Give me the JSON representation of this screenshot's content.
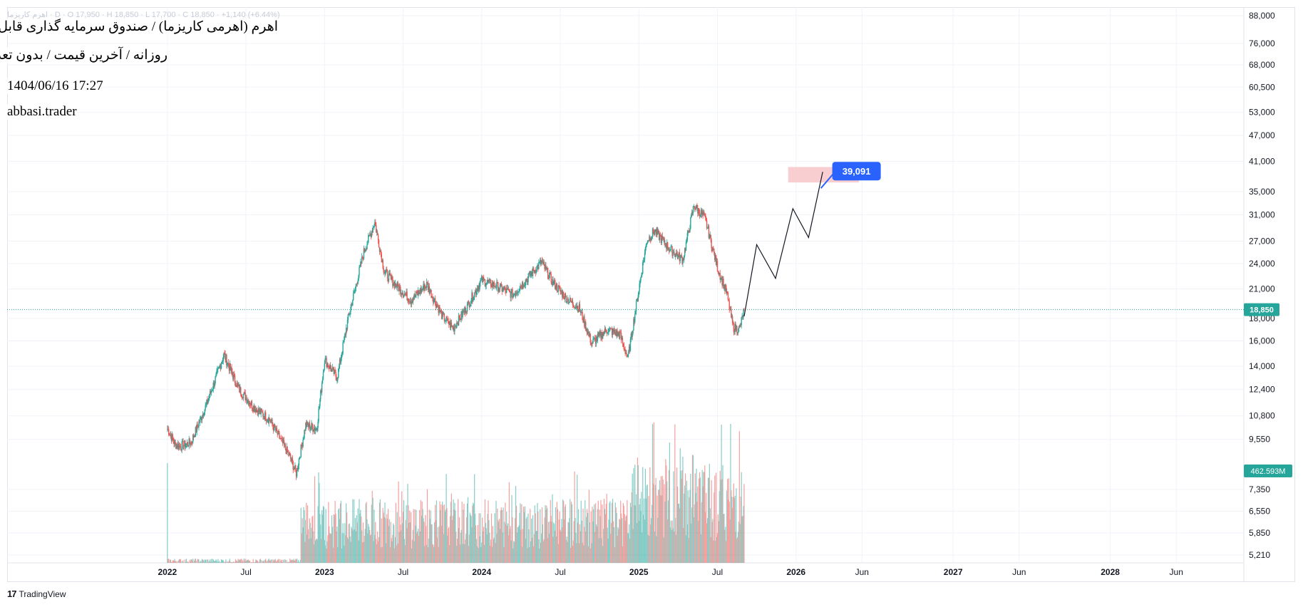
{
  "header": {
    "symbol_line": "اهرم کاریزما · D · O 17,950 · H 18,850 · L 17,700 · C 18,850 · +1,140 (+6.44%)",
    "title": "اهرم (اهرمی کاریزما) / صندوق سرمایه گذاری قابل معامله",
    "subtitle": "روزانه / آخرین قیمت / بدون تعدیل",
    "datetime": "1404/06/16 17:27",
    "author": "abbasi.trader"
  },
  "branding": {
    "logo_text": "TradingView",
    "logo_mark": "17"
  },
  "colors": {
    "up": "#26a69a",
    "down": "#ef5350",
    "grid": "#f0f3fa",
    "price_line": "#26a69a",
    "target_zone": "#f7c5c8",
    "callout": "#2962ff",
    "projection": "#131722"
  },
  "chart_data": {
    "type": "candlestick",
    "scale": "log",
    "ylim": [
      5000,
      92000
    ],
    "y_ticks": [
      88000,
      76000,
      68000,
      60500,
      53000,
      47000,
      41000,
      35000,
      31000,
      27000,
      24000,
      21000,
      18000,
      16000,
      14000,
      12400,
      10800,
      9550,
      7350,
      6550,
      5850,
      5210
    ],
    "x_ticks": [
      {
        "label": "2022",
        "t": 2022.0,
        "major": true
      },
      {
        "label": "Jul",
        "t": 2022.5,
        "major": false
      },
      {
        "label": "2023",
        "t": 2023.0,
        "major": true
      },
      {
        "label": "Jul",
        "t": 2023.5,
        "major": false
      },
      {
        "label": "2024",
        "t": 2024.0,
        "major": true
      },
      {
        "label": "Jul",
        "t": 2024.5,
        "major": false
      },
      {
        "label": "2025",
        "t": 2025.0,
        "major": true
      },
      {
        "label": "Jul",
        "t": 2025.5,
        "major": false
      },
      {
        "label": "2026",
        "t": 2026.0,
        "major": true
      },
      {
        "label": "Jun",
        "t": 2026.42,
        "major": false
      },
      {
        "label": "2027",
        "t": 2027.0,
        "major": true
      },
      {
        "label": "Jun",
        "t": 2027.42,
        "major": false
      },
      {
        "label": "2028",
        "t": 2028.0,
        "major": true
      },
      {
        "label": "Jun",
        "t": 2028.42,
        "major": false
      }
    ],
    "xlim": [
      2020.98,
      2028.85
    ],
    "price_path": [
      [
        2022.0,
        10100
      ],
      [
        2022.05,
        9300
      ],
      [
        2022.08,
        9200
      ],
      [
        2022.15,
        9400
      ],
      [
        2022.25,
        11500
      ],
      [
        2022.36,
        14900
      ],
      [
        2022.45,
        12500
      ],
      [
        2022.55,
        11300
      ],
      [
        2022.65,
        10600
      ],
      [
        2022.78,
        8700
      ],
      [
        2022.82,
        8000
      ],
      [
        2022.88,
        10300
      ],
      [
        2022.95,
        10100
      ],
      [
        2023.0,
        14500
      ],
      [
        2023.08,
        13200
      ],
      [
        2023.15,
        18000
      ],
      [
        2023.25,
        25500
      ],
      [
        2023.32,
        29800
      ],
      [
        2023.38,
        23000
      ],
      [
        2023.45,
        21500
      ],
      [
        2023.55,
        19800
      ],
      [
        2023.65,
        21500
      ],
      [
        2023.75,
        18200
      ],
      [
        2023.82,
        17100
      ],
      [
        2023.9,
        19000
      ],
      [
        2024.0,
        22000
      ],
      [
        2024.1,
        21300
      ],
      [
        2024.2,
        20400
      ],
      [
        2024.3,
        22400
      ],
      [
        2024.38,
        24200
      ],
      [
        2024.45,
        21800
      ],
      [
        2024.55,
        19800
      ],
      [
        2024.62,
        19000
      ],
      [
        2024.7,
        15800
      ],
      [
        2024.8,
        17000
      ],
      [
        2024.88,
        16500
      ],
      [
        2024.93,
        14600
      ],
      [
        2025.0,
        21000
      ],
      [
        2025.05,
        27000
      ],
      [
        2025.1,
        28500
      ],
      [
        2025.2,
        25800
      ],
      [
        2025.28,
        24500
      ],
      [
        2025.35,
        32500
      ],
      [
        2025.42,
        30500
      ],
      [
        2025.5,
        23500
      ],
      [
        2025.56,
        20500
      ],
      [
        2025.6,
        17200
      ],
      [
        2025.64,
        17000
      ],
      [
        2025.67,
        18850
      ]
    ],
    "last_price": 18850,
    "last_price_label": "18,850",
    "volume_label": "462.593M",
    "projection": [
      [
        2025.67,
        18200
      ],
      [
        2025.75,
        26500
      ],
      [
        2025.87,
        22200
      ],
      [
        2025.98,
        32000
      ],
      [
        2026.08,
        27500
      ],
      [
        2026.17,
        38800
      ]
    ],
    "target_zone": {
      "t0": 2025.95,
      "t1": 2026.4,
      "p0": 36700,
      "p1": 39800
    },
    "callout": {
      "label": "39,091",
      "t": 2026.24,
      "price": 39091
    }
  }
}
